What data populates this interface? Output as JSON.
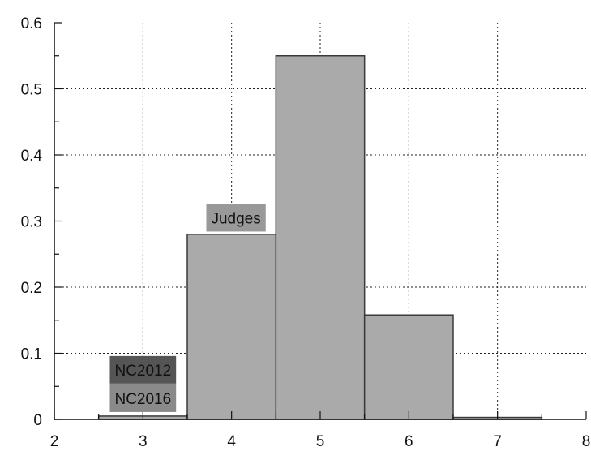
{
  "chart_data": {
    "type": "bar",
    "title": "",
    "xlabel": "",
    "ylabel": "",
    "xlim": [
      2,
      8
    ],
    "ylim": [
      0,
      0.6
    ],
    "grid": true,
    "x_ticks": [
      "2",
      "3",
      "4",
      "5",
      "6",
      "7",
      "8"
    ],
    "y_ticks": [
      "0",
      "0.1",
      "0.2",
      "0.3",
      "0.4",
      "0.5",
      "0.6"
    ],
    "bars": [
      {
        "x_start": 2.5,
        "x_end": 3.5,
        "value": 0.005
      },
      {
        "x_start": 3.5,
        "x_end": 4.5,
        "value": 0.28
      },
      {
        "x_start": 4.5,
        "x_end": 5.5,
        "value": 0.55
      },
      {
        "x_start": 5.5,
        "x_end": 6.5,
        "value": 0.158
      },
      {
        "x_start": 6.5,
        "x_end": 7.5,
        "value": 0.003
      }
    ],
    "bar_color": "#aaaaaa",
    "annotations": [
      {
        "text": "Judges",
        "x": 4.05,
        "y": 0.305,
        "bg": "#999999"
      },
      {
        "text": "NC2012",
        "x": 3.0,
        "y": 0.075,
        "bg": "#555555"
      },
      {
        "text": "NC2016",
        "x": 3.0,
        "y": 0.032,
        "bg": "#8a8a8a"
      }
    ]
  }
}
